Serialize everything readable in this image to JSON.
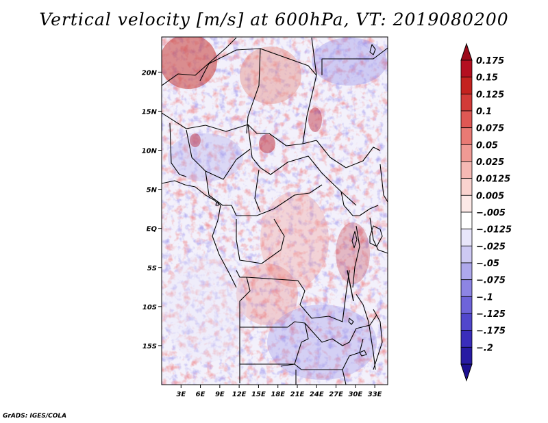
{
  "title": "Vertical velocity [m/s] at 600hPa, VT: 2019080200",
  "footer": "GrADS: IGES/COLA",
  "map": {
    "lon_range": [
      0,
      35
    ],
    "lat_range": [
      -20,
      24.5
    ],
    "lat_ticks": [
      {
        "value": 20,
        "label": "20N"
      },
      {
        "value": 15,
        "label": "15N"
      },
      {
        "value": 10,
        "label": "10N"
      },
      {
        "value": 5,
        "label": "5N"
      },
      {
        "value": 0,
        "label": "EQ"
      },
      {
        "value": -5,
        "label": "5S"
      },
      {
        "value": -10,
        "label": "10S"
      },
      {
        "value": -15,
        "label": "15S"
      }
    ],
    "lon_ticks": [
      {
        "value": 3,
        "label": "3E"
      },
      {
        "value": 6,
        "label": "6E"
      },
      {
        "value": 9,
        "label": "9E"
      },
      {
        "value": 12,
        "label": "12E"
      },
      {
        "value": 15,
        "label": "15E"
      },
      {
        "value": 18,
        "label": "18E"
      },
      {
        "value": 21,
        "label": "21E"
      },
      {
        "value": 24,
        "label": "24E"
      },
      {
        "value": 27,
        "label": "27E"
      },
      {
        "value": 30,
        "label": "30E"
      },
      {
        "value": 33,
        "label": "33E"
      }
    ]
  },
  "colorbar": {
    "levels": [
      {
        "label": "0.175",
        "color": "#b40f20"
      },
      {
        "label": "0.15",
        "color": "#c4221f"
      },
      {
        "label": "0.125",
        "color": "#d23b38"
      },
      {
        "label": "0.1",
        "color": "#df5854"
      },
      {
        "label": "0.075",
        "color": "#e97a74"
      },
      {
        "label": "0.05",
        "color": "#f09a94"
      },
      {
        "label": "0.025",
        "color": "#f5b9b4"
      },
      {
        "label": "0.0125",
        "color": "#f9d3cf"
      },
      {
        "label": "0.005",
        "color": "#fce9e7"
      },
      {
        "label": "−.005",
        "color": "#ffffff"
      },
      {
        "label": "−.0125",
        "color": "#e8e6fa"
      },
      {
        "label": "−.025",
        "color": "#cdc9f3"
      },
      {
        "label": "−.05",
        "color": "#aea8ec"
      },
      {
        "label": "−.075",
        "color": "#8d85e4"
      },
      {
        "label": "−.1",
        "color": "#6e64d9"
      },
      {
        "label": "−.125",
        "color": "#5147cc"
      },
      {
        "label": "−.175",
        "color": "#3a2dbb"
      },
      {
        "label": "−.2",
        "color": "#281ba3"
      }
    ],
    "top_arrow_color": "#9c0a1a",
    "bottom_arrow_color": "#1d1090"
  }
}
